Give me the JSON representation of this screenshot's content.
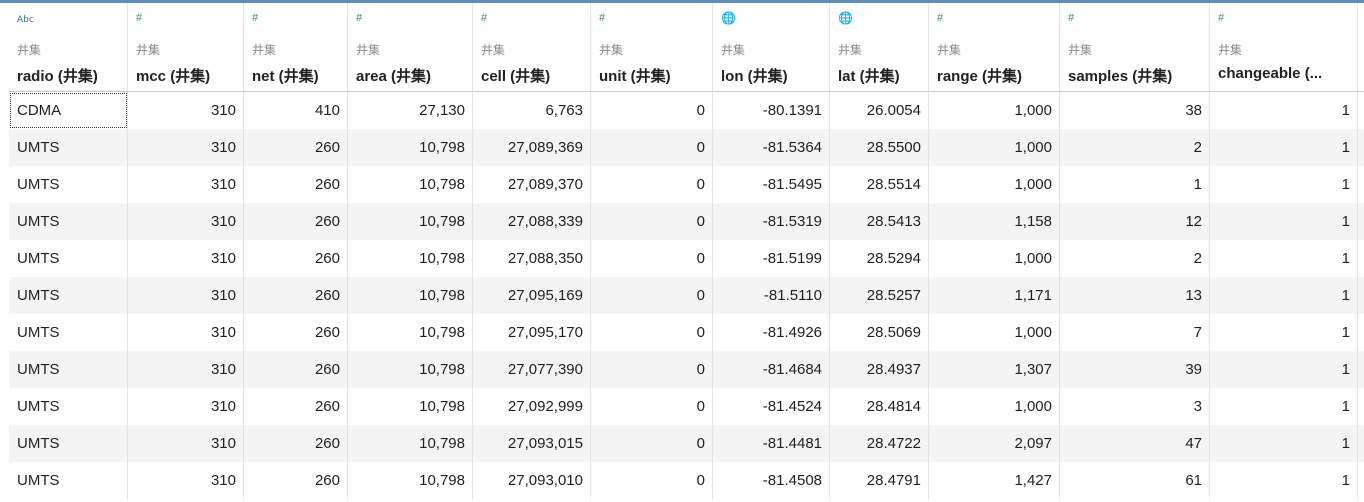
{
  "header": {
    "columns": [
      {
        "icon": "abc-icon",
        "icon_glyph": "Abc",
        "role": "井集",
        "name": "radio (井集)"
      },
      {
        "icon": "hash-icon",
        "icon_glyph": "#",
        "role": "井集",
        "name": "mcc (井集)"
      },
      {
        "icon": "hash-icon",
        "icon_glyph": "#",
        "role": "井集",
        "name": "net (井集)"
      },
      {
        "icon": "hash-icon",
        "icon_glyph": "#",
        "role": "井集",
        "name": "area (井集)"
      },
      {
        "icon": "hash-icon",
        "icon_glyph": "#",
        "role": "井集",
        "name": "cell (井集)"
      },
      {
        "icon": "hash-icon",
        "icon_glyph": "#",
        "role": "井集",
        "name": "unit (井集)"
      },
      {
        "icon": "globe-icon",
        "icon_glyph": "🌐",
        "role": "井集",
        "name": "lon (井集)"
      },
      {
        "icon": "globe-icon",
        "icon_glyph": "🌐",
        "role": "井集",
        "name": "lat (井集)"
      },
      {
        "icon": "hash-icon",
        "icon_glyph": "#",
        "role": "井集",
        "name": "range (井集)"
      },
      {
        "icon": "hash-icon",
        "icon_glyph": "#",
        "role": "井集",
        "name": "samples (井集)"
      },
      {
        "icon": "hash-icon",
        "icon_glyph": "#",
        "role": "井集",
        "name": "changeable (..."
      }
    ]
  },
  "rows": [
    [
      "CDMA",
      "310",
      "410",
      "27,130",
      "6,763",
      "0",
      "-80.1391",
      "26.0054",
      "1,000",
      "38",
      "1"
    ],
    [
      "UMTS",
      "310",
      "260",
      "10,798",
      "27,089,369",
      "0",
      "-81.5364",
      "28.5500",
      "1,000",
      "2",
      "1"
    ],
    [
      "UMTS",
      "310",
      "260",
      "10,798",
      "27,089,370",
      "0",
      "-81.5495",
      "28.5514",
      "1,000",
      "1",
      "1"
    ],
    [
      "UMTS",
      "310",
      "260",
      "10,798",
      "27,088,339",
      "0",
      "-81.5319",
      "28.5413",
      "1,158",
      "12",
      "1"
    ],
    [
      "UMTS",
      "310",
      "260",
      "10,798",
      "27,088,350",
      "0",
      "-81.5199",
      "28.5294",
      "1,000",
      "2",
      "1"
    ],
    [
      "UMTS",
      "310",
      "260",
      "10,798",
      "27,095,169",
      "0",
      "-81.5110",
      "28.5257",
      "1,171",
      "13",
      "1"
    ],
    [
      "UMTS",
      "310",
      "260",
      "10,798",
      "27,095,170",
      "0",
      "-81.4926",
      "28.5069",
      "1,000",
      "7",
      "1"
    ],
    [
      "UMTS",
      "310",
      "260",
      "10,798",
      "27,077,390",
      "0",
      "-81.4684",
      "28.4937",
      "1,307",
      "39",
      "1"
    ],
    [
      "UMTS",
      "310",
      "260",
      "10,798",
      "27,092,999",
      "0",
      "-81.4524",
      "28.4814",
      "1,000",
      "3",
      "1"
    ],
    [
      "UMTS",
      "310",
      "260",
      "10,798",
      "27,093,015",
      "0",
      "-81.4481",
      "28.4722",
      "2,097",
      "47",
      "1"
    ],
    [
      "UMTS",
      "310",
      "260",
      "10,798",
      "27,093,010",
      "0",
      "-81.4508",
      "28.4791",
      "1,427",
      "61",
      "1"
    ]
  ]
}
